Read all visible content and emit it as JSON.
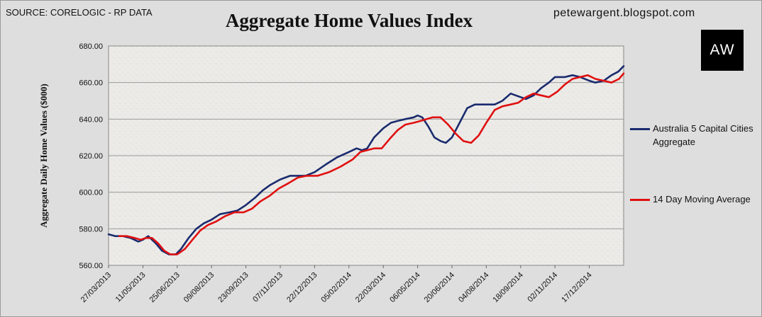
{
  "header": {
    "source": "SOURCE: CORELOGIC - RP DATA",
    "blog": "petewargent.blogspot.com",
    "logo": "AW"
  },
  "colors": {
    "series_main": "#1a2b6e",
    "series_avg": "#e01010",
    "plot_bg": "#ececea",
    "grid": "#9a9a9a"
  },
  "chart_data": {
    "type": "line",
    "title": "Aggregate Home Values Index",
    "xlabel": "",
    "ylabel": "Aggregate Daily Home Values ($000)",
    "ylim": [
      560,
      680
    ],
    "yticks": [
      "560.00",
      "580.00",
      "600.00",
      "620.00",
      "640.00",
      "660.00",
      "680.00"
    ],
    "xticks": [
      "27/03/2013",
      "11/05/2013",
      "25/06/2013",
      "09/08/2013",
      "23/09/2013",
      "07/11/2013",
      "22/12/2013",
      "05/02/2014",
      "22/03/2014",
      "06/05/2014",
      "20/06/2014",
      "04/08/2014",
      "18/09/2014",
      "02/11/2014",
      "17/12/2014"
    ],
    "xlim": [
      "2013-03-27",
      "2015-01-31"
    ],
    "grid": true,
    "legend_position": "right",
    "series": [
      {
        "name": "Australia 5 Capital Cities Aggregate",
        "x": [
          "2013-03-27",
          "2013-04-05",
          "2013-04-15",
          "2013-04-25",
          "2013-05-05",
          "2013-05-11",
          "2013-05-18",
          "2013-05-28",
          "2013-06-05",
          "2013-06-14",
          "2013-06-23",
          "2013-06-30",
          "2013-07-10",
          "2013-07-20",
          "2013-07-30",
          "2013-08-09",
          "2013-08-20",
          "2013-09-01",
          "2013-09-12",
          "2013-09-23",
          "2013-10-05",
          "2013-10-15",
          "2013-10-25",
          "2013-11-07",
          "2013-11-20",
          "2013-12-01",
          "2013-12-10",
          "2013-12-22",
          "2014-01-05",
          "2014-01-20",
          "2014-02-05",
          "2014-02-15",
          "2014-02-22",
          "2014-03-01",
          "2014-03-10",
          "2014-03-22",
          "2014-04-01",
          "2014-04-10",
          "2014-04-20",
          "2014-05-01",
          "2014-05-06",
          "2014-05-12",
          "2014-05-20",
          "2014-05-28",
          "2014-06-05",
          "2014-06-12",
          "2014-06-20",
          "2014-06-30",
          "2014-07-10",
          "2014-07-20",
          "2014-08-04",
          "2014-08-15",
          "2014-08-25",
          "2014-09-05",
          "2014-09-18",
          "2014-09-25",
          "2014-10-05",
          "2014-10-15",
          "2014-10-25",
          "2014-11-02",
          "2014-11-15",
          "2014-11-25",
          "2014-12-05",
          "2014-12-17",
          "2014-12-25",
          "2015-01-05",
          "2015-01-15",
          "2015-01-24",
          "2015-01-31"
        ],
        "values": [
          577,
          576,
          576,
          575,
          573,
          574,
          576,
          572,
          568,
          566,
          566,
          569,
          575,
          580,
          583,
          585,
          588,
          589,
          590,
          593,
          597,
          601,
          604,
          607,
          609,
          609,
          609,
          611,
          615,
          619,
          622,
          624,
          623,
          624,
          630,
          635,
          638,
          639,
          640,
          641,
          642,
          641,
          636,
          630,
          628,
          627,
          630,
          638,
          646,
          648,
          648,
          648,
          650,
          654,
          652,
          651,
          653,
          657,
          660,
          663,
          663,
          664,
          663,
          661,
          660,
          661,
          664,
          666,
          669
        ]
      },
      {
        "name": "14 Day Moving Average",
        "x": [
          "2013-04-10",
          "2013-04-20",
          "2013-04-30",
          "2013-05-08",
          "2013-05-15",
          "2013-05-23",
          "2013-05-31",
          "2013-06-08",
          "2013-06-16",
          "2013-06-25",
          "2013-07-05",
          "2013-07-15",
          "2013-07-25",
          "2013-08-04",
          "2013-08-15",
          "2013-08-27",
          "2013-09-08",
          "2013-09-20",
          "2013-10-01",
          "2013-10-12",
          "2013-10-24",
          "2013-11-05",
          "2013-11-18",
          "2013-11-30",
          "2013-12-12",
          "2013-12-26",
          "2014-01-10",
          "2014-01-25",
          "2014-02-10",
          "2014-02-20",
          "2014-03-01",
          "2014-03-10",
          "2014-03-20",
          "2014-03-30",
          "2014-04-10",
          "2014-04-20",
          "2014-05-01",
          "2014-05-10",
          "2014-05-18",
          "2014-05-26",
          "2014-06-05",
          "2014-06-15",
          "2014-06-25",
          "2014-07-05",
          "2014-07-15",
          "2014-07-25",
          "2014-08-04",
          "2014-08-15",
          "2014-08-25",
          "2014-09-05",
          "2014-09-15",
          "2014-09-25",
          "2014-10-05",
          "2014-10-15",
          "2014-10-25",
          "2014-11-05",
          "2014-11-15",
          "2014-11-25",
          "2014-12-05",
          "2014-12-15",
          "2014-12-25",
          "2015-01-05",
          "2015-01-15",
          "2015-01-25",
          "2015-01-31"
        ],
        "values": [
          576,
          576,
          575,
          574,
          575,
          575,
          572,
          568,
          566,
          566,
          569,
          574,
          579,
          582,
          584,
          587,
          589,
          589,
          591,
          595,
          598,
          602,
          605,
          608,
          609,
          609,
          611,
          614,
          618,
          622,
          623,
          624,
          624,
          629,
          634,
          637,
          638,
          639,
          640,
          641,
          641,
          637,
          632,
          628,
          627,
          631,
          638,
          645,
          647,
          648,
          649,
          652,
          654,
          653,
          652,
          655,
          659,
          662,
          663,
          664,
          662,
          661,
          660,
          662,
          665
        ]
      }
    ]
  }
}
